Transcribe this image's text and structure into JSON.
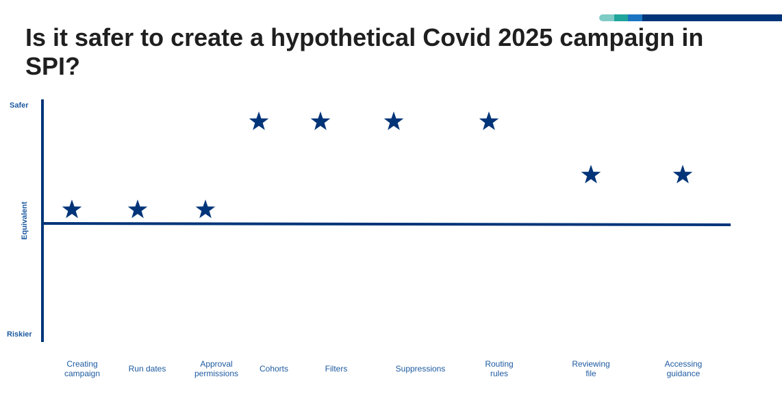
{
  "page": {
    "title": "Is it safer to create a hypothetical Covid 2025 campaign in SPI?"
  },
  "colors": {
    "primary": "#003479",
    "label_blue": "#1d5aa0",
    "accent_1": "#7fcbc6",
    "accent_2": "#1fa59b",
    "accent_3": "#1b75c2",
    "accent_4": "#003479"
  },
  "chart_data": {
    "type": "scatter",
    "marker": "star",
    "title": "",
    "y_axis": {
      "top_label": "Safer",
      "middle_label": "Equivalent",
      "bottom_label": "Riskier",
      "range": [
        "Riskier",
        "Safer"
      ]
    },
    "categories": [
      {
        "label": "Creating campaign",
        "line1": "Creating",
        "line2": "campaign",
        "level": "slightly safer"
      },
      {
        "label": "Run dates",
        "line1": "Run dates",
        "line2": "",
        "level": "slightly safer"
      },
      {
        "label": "Approval permissions",
        "line1": "Approval",
        "line2": "permissions",
        "level": "slightly safer"
      },
      {
        "label": "Cohorts",
        "line1": "Cohorts",
        "line2": "",
        "level": "much safer"
      },
      {
        "label": "Filters",
        "line1": "Filters",
        "line2": "",
        "level": "much safer"
      },
      {
        "label": "Suppressions",
        "line1": "Suppressions",
        "line2": "",
        "level": "much safer"
      },
      {
        "label": "Routing rules",
        "line1": "Routing",
        "line2": "rules",
        "level": "much safer"
      },
      {
        "label": "Reviewing file",
        "line1": "Reviewing",
        "line2": "file",
        "level": "moderately safer"
      },
      {
        "label": "Accessing guidance",
        "line1": "Accessing",
        "line2": "guidance",
        "level": "moderately safer"
      }
    ],
    "values": [
      0.11,
      0.11,
      0.11,
      0.82,
      0.82,
      0.82,
      0.82,
      0.39,
      0.39
    ],
    "legend": "none",
    "grid": false
  }
}
